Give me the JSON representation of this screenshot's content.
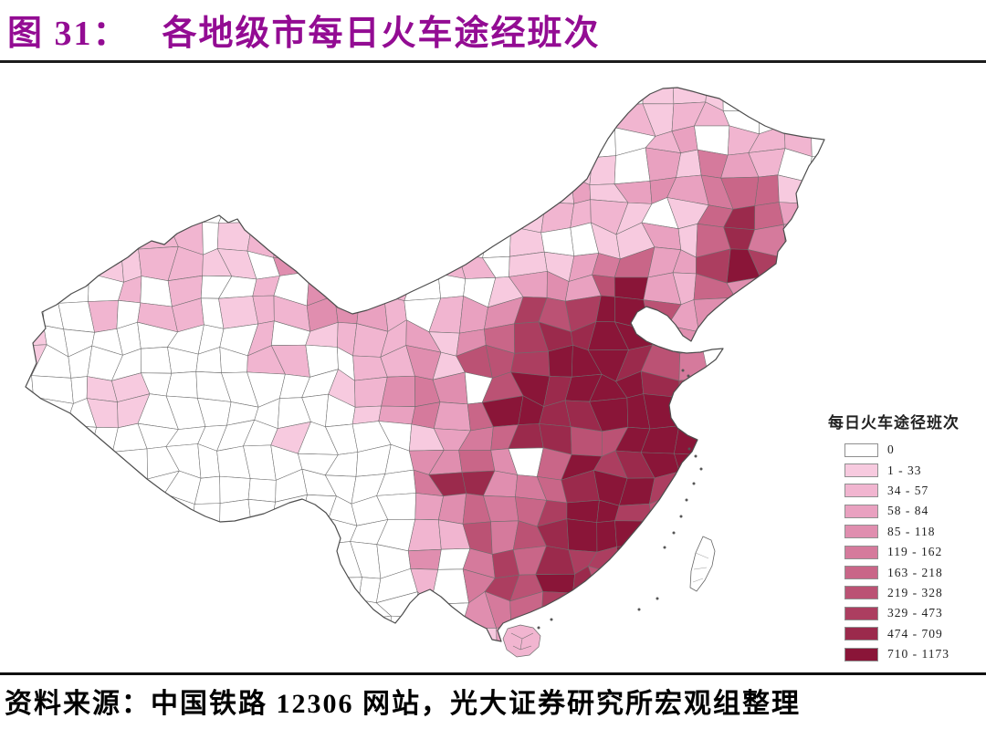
{
  "figure": {
    "label": "图 31：",
    "title": "各地级市每日火车途经班次"
  },
  "legend": {
    "title": "每日火车途径班次",
    "bins": [
      {
        "label": "0",
        "color": "#FFFFFF"
      },
      {
        "label": "1 - 33",
        "color": "#F7CADF"
      },
      {
        "label": "34 - 57",
        "color": "#F1B5D0"
      },
      {
        "label": "58 - 84",
        "color": "#E9A1C0"
      },
      {
        "label": "85 - 118",
        "color": "#E08EAF"
      },
      {
        "label": "119 - 162",
        "color": "#D57A9C"
      },
      {
        "label": "163 - 218",
        "color": "#C96688"
      },
      {
        "label": "219 - 328",
        "color": "#BB5274"
      },
      {
        "label": "329 - 473",
        "color": "#AC3E60"
      },
      {
        "label": "474 - 709",
        "color": "#9B2A4C"
      },
      {
        "label": "710 - 1173",
        "color": "#8A1538"
      }
    ]
  },
  "source": {
    "text": "资料来源：中国铁路 12306 网站，光大证券研究所宏观组整理"
  },
  "colors": {
    "title": "#930C93",
    "header_rule": "#1C1C1C",
    "bottom_rule": "#101010",
    "national_border": "#4d4d4d",
    "cell_border": "#6e6e6e",
    "min_color": "#FFFFFF",
    "max_color": "#8A1538"
  },
  "chart_data": {
    "type": "choropleth",
    "title": "各地级市每日火车途经班次",
    "legend_title": "每日火车途径班次",
    "geography": "China, prefecture-level cities",
    "value_name": "每日火车途经班次 (daily trains passing through)",
    "value_range": [
      0,
      1173
    ],
    "bins": [
      {
        "range": "0",
        "color": "#FFFFFF"
      },
      {
        "range": "1 - 33",
        "color": "#F7CADF"
      },
      {
        "range": "34 - 57",
        "color": "#F1B5D0"
      },
      {
        "range": "58 - 84",
        "color": "#E9A1C0"
      },
      {
        "range": "85 - 118",
        "color": "#E08EAF"
      },
      {
        "range": "119 - 162",
        "color": "#D57A9C"
      },
      {
        "range": "163 - 218",
        "color": "#C96688"
      },
      {
        "range": "219 - 328",
        "color": "#BB5274"
      },
      {
        "range": "329 - 473",
        "color": "#AC3E60"
      },
      {
        "range": "474 - 709",
        "color": "#9B2A4C"
      },
      {
        "range": "710 - 1173",
        "color": "#8A1538"
      }
    ],
    "legend_position": "right",
    "pattern": "Deep crimson (highest bins) around Beijing-Tianjin-Hebei, Zhengzhou/Xi'an, the Yangtze Delta, Wuhan-Changsha corridor, Chengdu-Chongqing and the Pearl River Delta; medium pinks across eastern/central and northeastern China; light pink in Xinjiang, Inner Mongolia, Yunnan and Hainan; white (0) across Tibet, Qinghai and western Sichuan; Taiwan drawn in outline only"
  }
}
